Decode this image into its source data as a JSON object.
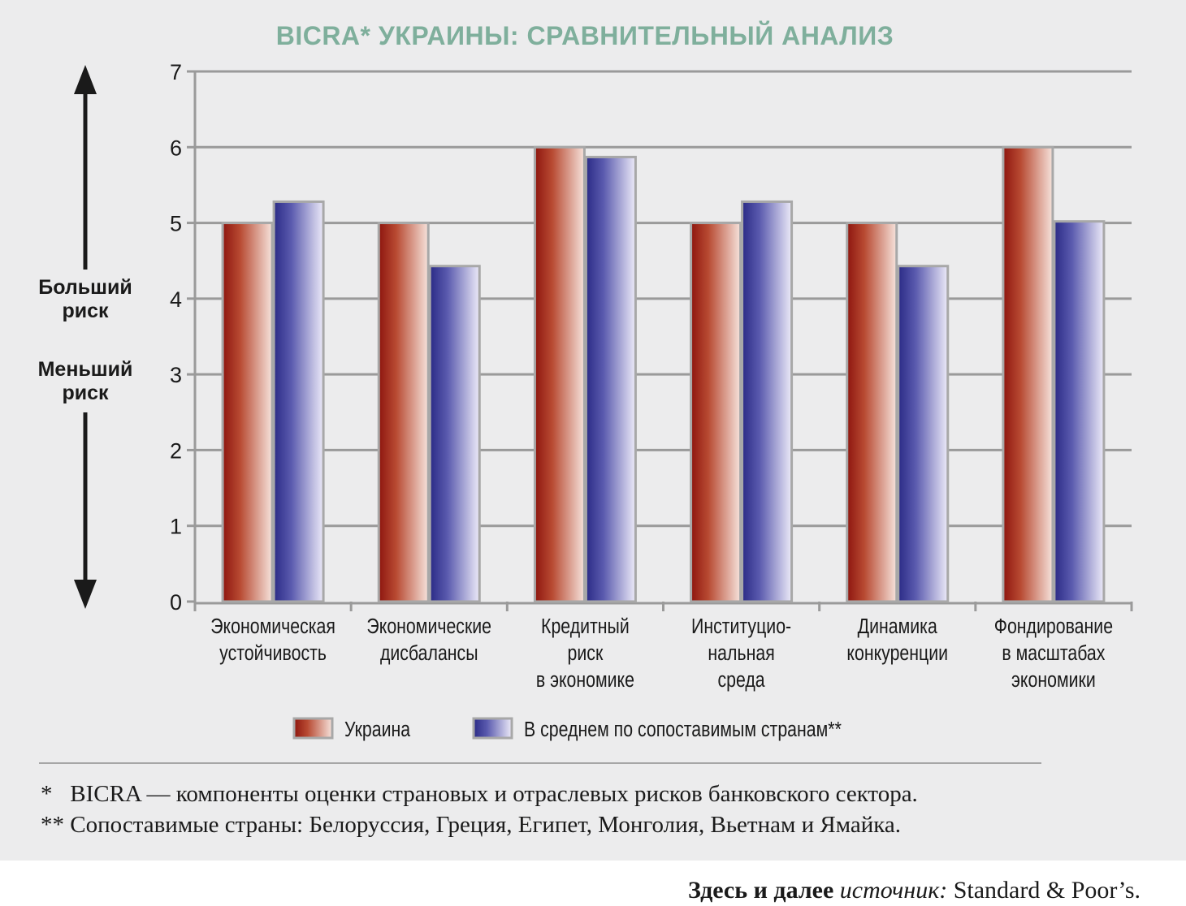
{
  "chart_data": {
    "type": "bar",
    "title": "BICRA* УКРАИНЫ: СРАВНИТЕЛЬНЫЙ АНАЛИЗ",
    "categories": [
      [
        "Экономическая",
        "устойчивость"
      ],
      [
        "Экономические",
        "дисбалансы"
      ],
      [
        "Кредитный",
        "риск",
        "в экономике"
      ],
      [
        "Институцио-",
        "нальная",
        "среда"
      ],
      [
        "Динамика",
        "конкуренции"
      ],
      [
        "Фондирование",
        "в масштабах",
        "экономики"
      ]
    ],
    "series": [
      {
        "name": "Украина",
        "values": [
          5.0,
          5.0,
          6.0,
          5.0,
          5.0,
          6.0
        ],
        "color": "#9e1c14"
      },
      {
        "name": "В среднем по сопоставимым странам**",
        "values": [
          5.28,
          4.43,
          5.87,
          5.28,
          4.43,
          5.02
        ],
        "color": "#3a3a96"
      }
    ],
    "ylim": [
      0,
      7
    ],
    "yticks": [
      "0",
      "1",
      "2",
      "3",
      "4",
      "5",
      "6",
      "7"
    ],
    "grid": true,
    "legend_position": "bottom",
    "side_labels": {
      "more_risk": [
        "Больший",
        "риск"
      ],
      "less_risk": [
        "Меньший",
        "риск"
      ]
    }
  },
  "footnotes": [
    "*   BICRA — компоненты оценки страновых и отраслевых рисков банковского сектора.",
    "** Сопоставимые страны: Белоруссия, Греция, Египет, Монголия, Вьетнам и Ямайка."
  ],
  "source": {
    "prefix": "Здесь и далее ",
    "label": "источник:",
    "name": " Standard & Poor’s."
  }
}
